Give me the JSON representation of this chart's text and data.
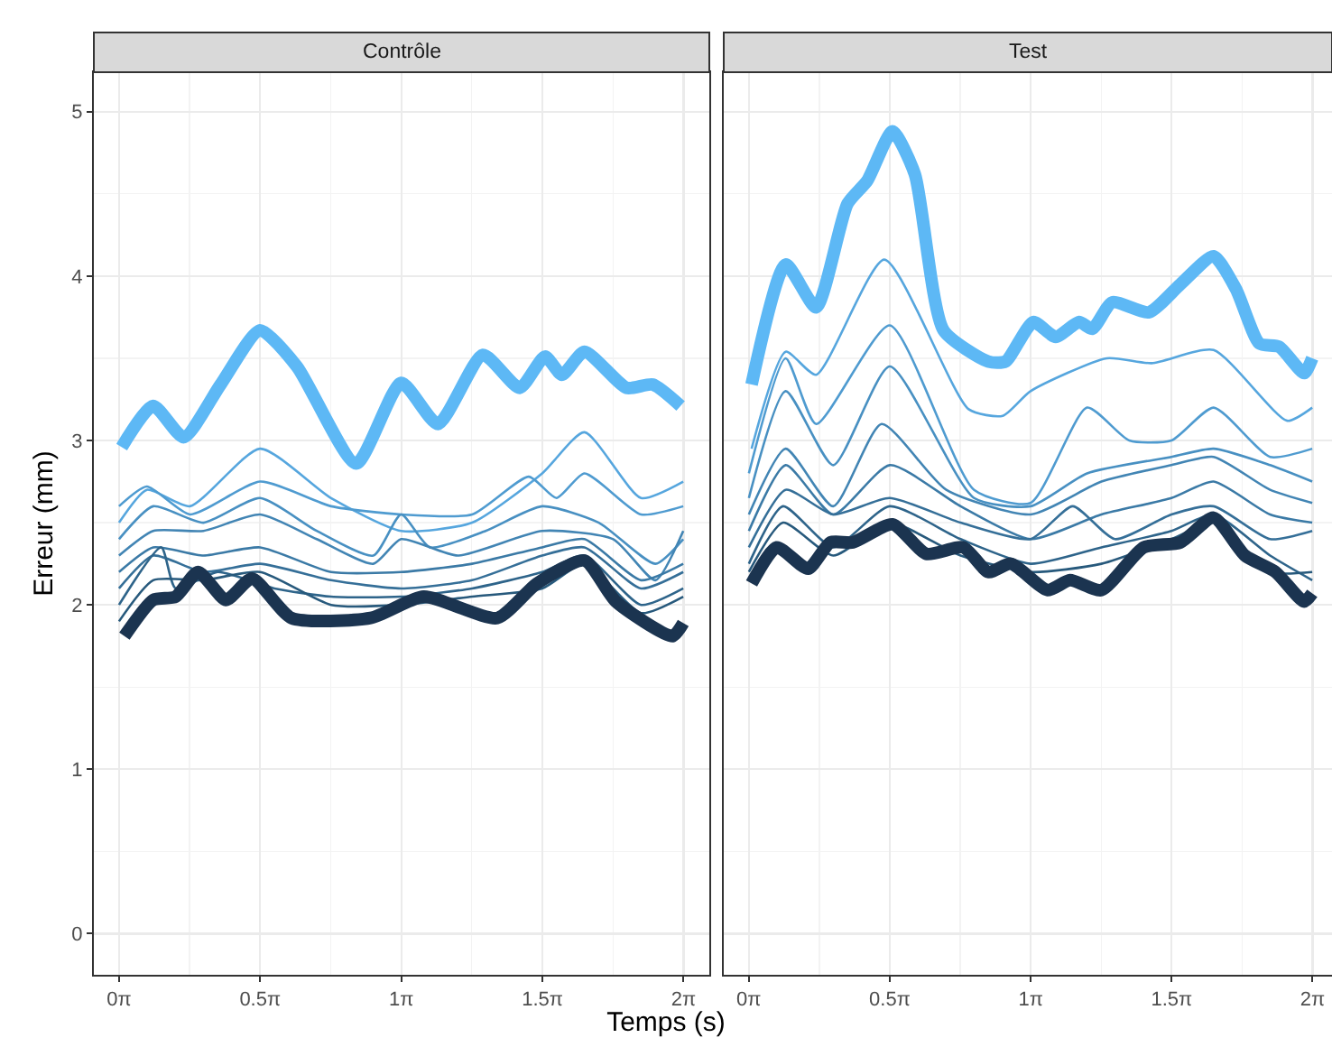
{
  "chart_data": [
    {
      "type": "line",
      "title": "Contrôle",
      "xlabel": "Temps (s)",
      "ylabel": "Erreur (mm)",
      "xlim": [
        -0.28,
        6.57
      ],
      "ylim": [
        -0.25,
        5.24
      ],
      "xticks": [
        {
          "value": 0,
          "label": "0π"
        },
        {
          "value": 1.5708,
          "label": "0.5π"
        },
        {
          "value": 3.1416,
          "label": "1π"
        },
        {
          "value": 4.7124,
          "label": "1.5π"
        },
        {
          "value": 6.2832,
          "label": "2π"
        }
      ],
      "yticks": [
        0,
        1,
        2,
        3,
        4,
        5
      ],
      "grid": true,
      "marker": "none",
      "line_style": "solid",
      "series": [
        {
          "color": "#56a6de",
          "x": [
            0,
            0.31,
            0.79,
            1.57,
            2.36,
            3.14,
            3.93,
            4.71,
            5.18,
            5.81,
            6.28
          ],
          "values": [
            2.5,
            2.7,
            2.6,
            2.95,
            2.65,
            2.45,
            2.5,
            2.8,
            3.05,
            2.65,
            2.75
          ]
        },
        {
          "color": "#4f9bd0",
          "x": [
            0,
            0.31,
            0.79,
            1.57,
            2.36,
            3.14,
            3.93,
            4.56,
            4.87,
            5.18,
            5.81,
            6.28
          ],
          "values": [
            2.6,
            2.72,
            2.55,
            2.75,
            2.6,
            2.55,
            2.55,
            2.78,
            2.65,
            2.8,
            2.55,
            2.6
          ]
        },
        {
          "color": "#4890c2",
          "x": [
            0,
            0.38,
            0.94,
            1.57,
            2.2,
            2.83,
            3.14,
            3.46,
            4.08,
            4.71,
            5.34,
            5.97,
            6.28
          ],
          "values": [
            2.4,
            2.6,
            2.5,
            2.65,
            2.45,
            2.3,
            2.55,
            2.35,
            2.45,
            2.6,
            2.5,
            2.25,
            2.4
          ]
        },
        {
          "color": "#4285b4",
          "x": [
            0,
            0.38,
            0.94,
            1.57,
            2.2,
            2.83,
            3.14,
            3.77,
            4.71,
            5.5,
            5.97,
            6.28
          ],
          "values": [
            2.3,
            2.45,
            2.45,
            2.55,
            2.4,
            2.25,
            2.4,
            2.3,
            2.45,
            2.4,
            2.15,
            2.45
          ]
        },
        {
          "color": "#3b7aa6",
          "x": [
            0,
            0.38,
            0.94,
            1.57,
            2.36,
            3.14,
            3.93,
            4.71,
            5.18,
            5.81,
            6.28
          ],
          "values": [
            2.2,
            2.35,
            2.3,
            2.35,
            2.2,
            2.2,
            2.25,
            2.35,
            2.4,
            2.15,
            2.25
          ]
        },
        {
          "color": "#356f98",
          "x": [
            0,
            0.38,
            0.94,
            1.57,
            2.36,
            3.14,
            3.93,
            4.71,
            5.18,
            5.81,
            6.28
          ],
          "values": [
            2.1,
            2.3,
            2.2,
            2.25,
            2.15,
            2.1,
            2.15,
            2.3,
            2.35,
            2.1,
            2.2
          ]
        },
        {
          "color": "#2e648a",
          "x": [
            0,
            0.47,
            0.63,
            1.1,
            1.73,
            2.36,
            3.14,
            3.93,
            4.71,
            5.18,
            5.81,
            6.28
          ],
          "values": [
            2.0,
            2.35,
            2.1,
            2.2,
            2.1,
            2.05,
            2.05,
            2.1,
            2.2,
            2.3,
            2.0,
            2.1
          ]
        },
        {
          "color": "#27597c",
          "x": [
            0,
            0.38,
            0.94,
            1.57,
            2.36,
            3.14,
            3.93,
            4.71,
            5.18,
            5.81,
            6.28
          ],
          "values": [
            1.9,
            2.15,
            2.15,
            2.2,
            2.0,
            2.0,
            2.05,
            2.1,
            2.25,
            1.95,
            2.05
          ]
        },
        {
          "color": "#5db8f5",
          "x": [
            0.03,
            0.38,
            0.72,
            1.13,
            1.57,
            1.98,
            2.64,
            3.14,
            3.55,
            4.05,
            4.46,
            4.74,
            4.93,
            5.18,
            5.65,
            5.94,
            6.25
          ],
          "values": [
            2.96,
            3.21,
            3.02,
            3.34,
            3.67,
            3.45,
            2.86,
            3.35,
            3.1,
            3.52,
            3.32,
            3.51,
            3.4,
            3.54,
            3.32,
            3.34,
            3.21
          ]
        },
        {
          "color": "#1b3450",
          "x": [
            0.06,
            0.38,
            0.63,
            0.88,
            1.19,
            1.48,
            1.92,
            2.8,
            3.39,
            4.21,
            4.65,
            5.18,
            5.53,
            6.16,
            6.28
          ],
          "values": [
            1.81,
            2.03,
            2.05,
            2.2,
            2.03,
            2.16,
            1.92,
            1.92,
            2.05,
            1.92,
            2.13,
            2.27,
            2.02,
            1.81,
            1.89
          ]
        }
      ]
    },
    {
      "type": "line",
      "title": "Test",
      "xlim": [
        -0.28,
        6.5
      ],
      "ylim": [
        -0.25,
        5.24
      ],
      "xticks": [
        {
          "value": 0,
          "label": "0π"
        },
        {
          "value": 1.5708,
          "label": "0.5π"
        },
        {
          "value": 3.1416,
          "label": "1π"
        },
        {
          "value": 4.7124,
          "label": "1.5π"
        },
        {
          "value": 6.2832,
          "label": "2π"
        }
      ],
      "yticks": [
        0,
        1,
        2,
        3,
        4,
        5
      ],
      "tick_labels": "x",
      "grid": true,
      "marker": "none",
      "line_style": "solid",
      "series": [
        {
          "color": "#56a6de",
          "x": [
            0.03,
            0.41,
            0.75,
            1.51,
            2.45,
            2.83,
            3.14,
            3.99,
            4.49,
            5.18,
            6.0,
            6.28
          ],
          "values": [
            2.95,
            3.54,
            3.4,
            4.1,
            3.19,
            3.15,
            3.3,
            3.5,
            3.47,
            3.55,
            3.12,
            3.2
          ]
        },
        {
          "color": "#4f9bd0",
          "x": [
            0,
            0.41,
            0.75,
            1.57,
            2.51,
            3.14,
            3.77,
            4.24,
            4.71,
            5.18,
            5.81,
            6.28
          ],
          "values": [
            2.8,
            3.5,
            3.1,
            3.7,
            2.7,
            2.62,
            3.2,
            3.0,
            3.0,
            3.2,
            2.9,
            2.95
          ]
        },
        {
          "color": "#4890c2",
          "x": [
            0,
            0.41,
            0.94,
            1.57,
            2.51,
            3.14,
            3.77,
            4.71,
            5.18,
            5.81,
            6.28
          ],
          "values": [
            2.65,
            3.3,
            2.85,
            3.45,
            2.65,
            2.6,
            2.8,
            2.9,
            2.95,
            2.85,
            2.75
          ]
        },
        {
          "color": "#4285b4",
          "x": [
            0,
            0.41,
            0.94,
            1.48,
            2.2,
            3.14,
            3.93,
            4.71,
            5.18,
            5.81,
            6.28
          ],
          "values": [
            2.55,
            2.95,
            2.6,
            3.1,
            2.7,
            2.55,
            2.75,
            2.85,
            2.9,
            2.7,
            2.62
          ]
        },
        {
          "color": "#3b7aa6",
          "x": [
            0,
            0.41,
            0.94,
            1.57,
            2.36,
            3.14,
            3.93,
            4.71,
            5.18,
            5.81,
            6.28
          ],
          "values": [
            2.45,
            2.85,
            2.55,
            2.85,
            2.6,
            2.4,
            2.55,
            2.65,
            2.75,
            2.55,
            2.5
          ]
        },
        {
          "color": "#356f98",
          "x": [
            0,
            0.41,
            0.94,
            1.57,
            2.36,
            3.14,
            3.61,
            4.08,
            4.71,
            5.18,
            5.81,
            6.28
          ],
          "values": [
            2.35,
            2.7,
            2.55,
            2.65,
            2.5,
            2.4,
            2.6,
            2.4,
            2.55,
            2.6,
            2.4,
            2.45
          ]
        },
        {
          "color": "#2e648a",
          "x": [
            0,
            0.38,
            0.94,
            1.57,
            2.36,
            3.14,
            3.93,
            4.71,
            5.18,
            5.81,
            6.28
          ],
          "values": [
            2.25,
            2.6,
            2.35,
            2.6,
            2.4,
            2.25,
            2.35,
            2.45,
            2.55,
            2.3,
            2.15
          ]
        },
        {
          "color": "#27597c",
          "x": [
            0,
            0.38,
            0.94,
            1.57,
            2.36,
            3.14,
            3.93,
            4.71,
            5.18,
            5.81,
            6.28
          ],
          "values": [
            2.2,
            2.5,
            2.3,
            2.5,
            2.3,
            2.2,
            2.25,
            2.4,
            2.5,
            2.2,
            2.2
          ]
        },
        {
          "color": "#5db8f5",
          "x": [
            0.03,
            0.41,
            0.75,
            1.1,
            1.32,
            1.6,
            1.85,
            2.17,
            2.67,
            2.86,
            3.17,
            3.42,
            3.68,
            3.83,
            4.05,
            4.46,
            4.81,
            5.18,
            5.43,
            5.69,
            5.91,
            6.19,
            6.28
          ],
          "values": [
            3.34,
            4.07,
            3.81,
            4.44,
            4.58,
            4.88,
            4.62,
            3.67,
            3.48,
            3.48,
            3.72,
            3.63,
            3.72,
            3.68,
            3.84,
            3.78,
            3.95,
            4.12,
            3.92,
            3.59,
            3.57,
            3.41,
            3.5
          ]
        },
        {
          "color": "#1b3450",
          "x": [
            0.03,
            0.31,
            0.66,
            0.91,
            1.16,
            1.6,
            1.98,
            2.39,
            2.67,
            2.92,
            3.33,
            3.58,
            3.93,
            4.4,
            4.81,
            5.18,
            5.53,
            5.87,
            6.19,
            6.28
          ],
          "values": [
            2.13,
            2.35,
            2.22,
            2.38,
            2.38,
            2.49,
            2.31,
            2.35,
            2.2,
            2.25,
            2.09,
            2.15,
            2.09,
            2.35,
            2.38,
            2.53,
            2.3,
            2.2,
            2.02,
            2.07
          ]
        }
      ]
    }
  ]
}
